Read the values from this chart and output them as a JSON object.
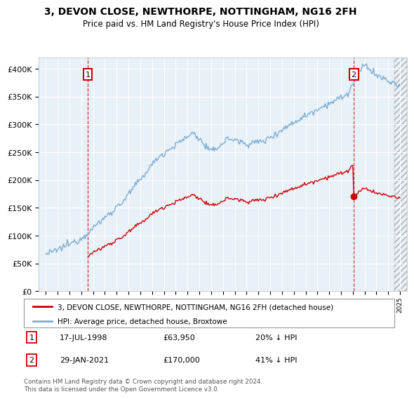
{
  "title": "3, DEVON CLOSE, NEWTHORPE, NOTTINGHAM, NG16 2FH",
  "subtitle": "Price paid vs. HM Land Registry's House Price Index (HPI)",
  "hpi_color": "#7aadd4",
  "price_color": "#cc0000",
  "marker_color": "#cc0000",
  "annotation_box_color": "#cc0000",
  "plot_bg": "#e8f0f8",
  "legend_label_red": "3, DEVON CLOSE, NEWTHORPE, NOTTINGHAM, NG16 2FH (detached house)",
  "legend_label_blue": "HPI: Average price, detached house, Broxtowe",
  "transaction1_date": "17-JUL-1998",
  "transaction1_price": "£63,950",
  "transaction1_hpi": "20% ↓ HPI",
  "transaction2_date": "29-JAN-2021",
  "transaction2_price": "£170,000",
  "transaction2_hpi": "41% ↓ HPI",
  "footer": "Contains HM Land Registry data © Crown copyright and database right 2024.\nThis data is licensed under the Open Government Licence v3.0.",
  "ylim": [
    0,
    420000
  ],
  "yticks": [
    0,
    50000,
    100000,
    150000,
    200000,
    250000,
    300000,
    350000,
    400000
  ],
  "ytick_labels": [
    "£0",
    "£50K",
    "£100K",
    "£150K",
    "£200K",
    "£250K",
    "£300K",
    "£350K",
    "£400K"
  ],
  "t1_year": 1998.54,
  "t1_price": 63950,
  "t2_year": 2021.08,
  "t2_price": 170000
}
